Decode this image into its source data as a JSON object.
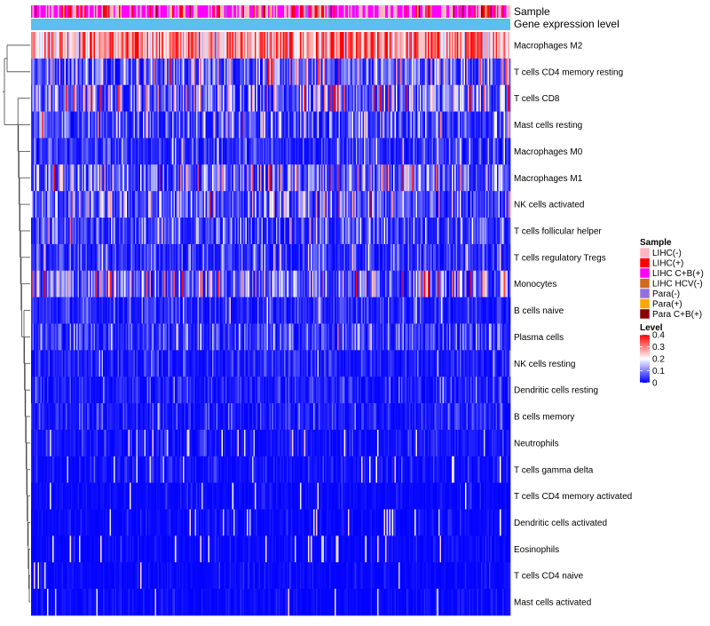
{
  "chart_data": {
    "type": "heatmap",
    "annotation_tracks": [
      "Sample",
      "Gene expression level"
    ],
    "rows": [
      "Macrophages M2",
      "T cells CD4 memory resting",
      "T cells CD8",
      "Mast cells resting",
      "Macrophages M0",
      "Macrophages M1",
      "NK cells activated",
      "T cells follicular helper",
      "T cells regulatory  Tregs",
      "Monocytes",
      "B cells naive",
      "Plasma cells",
      "NK cells resting",
      "Dendritic cells resting",
      "B cells memory",
      "Neutrophils",
      "T cells gamma delta",
      "T cells CD4 memory activated",
      "Dendritic cells activated",
      "Eosinophils",
      "T cells CD4 naive",
      "Mast cells activated"
    ],
    "row_mean_levels": [
      0.28,
      0.12,
      0.13,
      0.08,
      0.05,
      0.1,
      0.09,
      0.07,
      0.05,
      0.13,
      0.04,
      0.06,
      0.03,
      0.03,
      0.03,
      0.02,
      0.02,
      0.01,
      0.01,
      0.01,
      0.01,
      0.01
    ],
    "sample_legend": {
      "title": "Sample",
      "entries": [
        {
          "label": "LIHC(-)",
          "color": "#ffb6c1"
        },
        {
          "label": "LIHC(+)",
          "color": "#ff0000"
        },
        {
          "label": "LIHC C+B(+)",
          "color": "#ff00ff"
        },
        {
          "label": "LIHC HCV(-)",
          "color": "#d2691e"
        },
        {
          "label": "Para(-)",
          "color": "#9370db"
        },
        {
          "label": "Para(+)",
          "color": "#ffa500"
        },
        {
          "label": "Para C+B(+)",
          "color": "#8b0000"
        }
      ]
    },
    "level_legend": {
      "title": "Level",
      "ticks": [
        "0.4",
        "0.3",
        "0.2",
        "0.1",
        "0"
      ],
      "min": 0,
      "max": 0.4,
      "colors": [
        "#0000ff",
        "#ffffff",
        "#ff0000"
      ]
    },
    "gene_expression_color": "#5bc0eb"
  }
}
